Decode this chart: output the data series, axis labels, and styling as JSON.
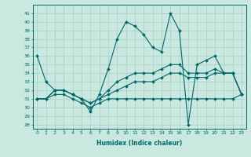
{
  "xlabel": "Humidex (Indice chaleur)",
  "background_color": "#c8e8e0",
  "grid_color": "#a8ccc8",
  "line_color": "#006868",
  "xlim": [
    -0.5,
    23.5
  ],
  "ylim": [
    27.5,
    42
  ],
  "yticks": [
    28,
    29,
    30,
    31,
    32,
    33,
    34,
    35,
    36,
    37,
    38,
    39,
    40,
    41
  ],
  "xticks": [
    0,
    1,
    2,
    3,
    4,
    5,
    6,
    7,
    8,
    9,
    10,
    11,
    12,
    13,
    14,
    15,
    16,
    17,
    18,
    19,
    20,
    21,
    22,
    23
  ],
  "series": [
    [
      36,
      33,
      32,
      32,
      31.5,
      31,
      29.5,
      31.5,
      34.5,
      38,
      40,
      39.5,
      38.5,
      37,
      36.5,
      41,
      39,
      28,
      35,
      35.5,
      36,
      34,
      34,
      31.5
    ],
    [
      31,
      31,
      32,
      32,
      31.5,
      31,
      30.5,
      31,
      32,
      33,
      33.5,
      34,
      34,
      34,
      34.5,
      35,
      35,
      34,
      34,
      34,
      34.5,
      34,
      34,
      31.5
    ],
    [
      31,
      31,
      32,
      32,
      31.5,
      31,
      30.5,
      31,
      31.5,
      32,
      32.5,
      33,
      33,
      33,
      33.5,
      34,
      34,
      33.5,
      33.5,
      33.5,
      34,
      34,
      34,
      31.5
    ],
    [
      31,
      31,
      31.5,
      31.5,
      31,
      30.5,
      30,
      30.5,
      31,
      31,
      31,
      31,
      31,
      31,
      31,
      31,
      31,
      31,
      31,
      31,
      31,
      31,
      31,
      31.5
    ]
  ]
}
